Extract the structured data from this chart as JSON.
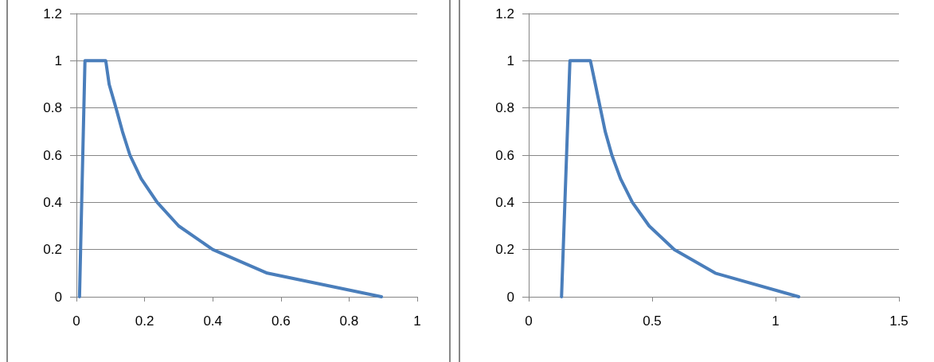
{
  "chart_data": [
    {
      "type": "line",
      "x": [
        0.009,
        0.025,
        0.086,
        0.096,
        0.116,
        0.135,
        0.157,
        0.19,
        0.237,
        0.3,
        0.4,
        0.56,
        0.895
      ],
      "values": [
        0,
        1,
        1,
        0.9,
        0.8,
        0.7,
        0.6,
        0.5,
        0.4,
        0.3,
        0.2,
        0.1,
        0
      ],
      "color": "#4a7ebb",
      "xlim": [
        0,
        1
      ],
      "xticks": [
        0,
        0.2,
        0.4,
        0.6,
        0.8,
        1
      ],
      "ylim": [
        0,
        1.2
      ],
      "yticks": [
        0,
        0.2,
        0.4,
        0.6,
        0.8,
        1,
        1.2
      ],
      "grid": "y",
      "marker": "none",
      "line_style": "solid"
    },
    {
      "type": "line",
      "x": [
        0.133,
        0.167,
        0.25,
        0.27,
        0.29,
        0.31,
        0.337,
        0.372,
        0.42,
        0.488,
        0.59,
        0.756,
        1.094
      ],
      "values": [
        0,
        1,
        1,
        0.9,
        0.8,
        0.7,
        0.6,
        0.5,
        0.4,
        0.3,
        0.2,
        0.1,
        0
      ],
      "color": "#4a7ebb",
      "xlim": [
        0,
        1.5
      ],
      "xticks": [
        0,
        0.5,
        1,
        1.5
      ],
      "ylim": [
        0,
        1.2
      ],
      "yticks": [
        0,
        0.2,
        0.4,
        0.6,
        0.8,
        1,
        1.2
      ],
      "grid": "y",
      "marker": "none",
      "line_style": "solid"
    }
  ]
}
